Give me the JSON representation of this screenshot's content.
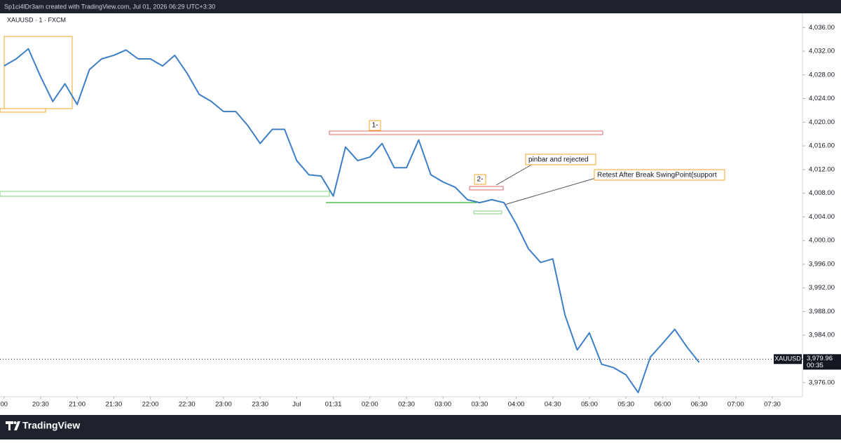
{
  "header": {
    "text": "Sp1ci4lDr3am created with TradingView.com, Jul 01, 2026 06:29 UTC+3:30"
  },
  "chart_data": {
    "type": "line",
    "title": "XAUUSD · 1 · FXCM",
    "x": [
      0,
      10,
      20,
      30,
      40,
      50,
      60,
      70,
      80,
      90,
      100,
      110,
      120,
      130,
      140,
      150,
      160,
      170,
      180,
      190,
      200,
      210,
      220,
      230,
      240,
      250,
      260,
      270,
      280,
      290,
      300,
      310,
      320,
      330,
      340,
      350,
      360,
      370,
      380,
      390,
      400,
      410,
      420,
      430,
      440,
      450,
      460,
      470,
      480,
      490,
      500,
      510,
      520,
      530,
      540,
      550,
      560,
      570
    ],
    "series": [
      {
        "name": "XAUUSD",
        "color": "#3d7fc6",
        "values": [
          4029.5,
          4030.7,
          4032.4,
          4027.7,
          4023.5,
          4026.5,
          4023,
          4028.9,
          4030.7,
          4031.3,
          4032.2,
          4030.7,
          4030.7,
          4029.5,
          4031.3,
          4028.3,
          4024.7,
          4023.5,
          4021.8,
          4021.8,
          4019.4,
          4016.4,
          4018.8,
          4018.8,
          4013.5,
          4011.1,
          4010.9,
          4007.5,
          4015.8,
          4013.5,
          4014.1,
          4016.4,
          4012.3,
          4012.3,
          4017.0,
          4011.1,
          4009.9,
          4009.0,
          4006.9,
          4006.4,
          4006.9,
          4006.4,
          4002.8,
          3998.6,
          3996.3,
          3996.9,
          3987.4,
          3981.5,
          3984.4,
          3979.1,
          3978.5,
          3977.3,
          3974.3,
          3980.3,
          3982.6,
          3985.0,
          3982.0,
          3979.4
        ]
      }
    ],
    "xlim": [
      -3.3,
      654.7
    ],
    "ylim": [
      3973.6,
      4038.4
    ],
    "xticks": [
      {
        "value": 0,
        "label": "00"
      },
      {
        "value": 30,
        "label": "20:30"
      },
      {
        "value": 60,
        "label": "21:00"
      },
      {
        "value": 90,
        "label": "21:30"
      },
      {
        "value": 120,
        "label": "22:00"
      },
      {
        "value": 150,
        "label": "22:30"
      },
      {
        "value": 180,
        "label": "23:00"
      },
      {
        "value": 210,
        "label": "23:30"
      },
      {
        "value": 240,
        "label": "Jul"
      },
      {
        "value": 270,
        "label": "01:31"
      },
      {
        "value": 300,
        "label": "02:00"
      },
      {
        "value": 330,
        "label": "02:30"
      },
      {
        "value": 360,
        "label": "03:00"
      },
      {
        "value": 390,
        "label": "03:30"
      },
      {
        "value": 420,
        "label": "04:00"
      },
      {
        "value": 450,
        "label": "04:30"
      },
      {
        "value": 480,
        "label": "05:00"
      },
      {
        "value": 510,
        "label": "05:30"
      },
      {
        "value": 540,
        "label": "06:00"
      },
      {
        "value": 570,
        "label": "06:30"
      },
      {
        "value": 600,
        "label": "07:00"
      },
      {
        "value": 630,
        "label": "07:30"
      }
    ],
    "yticks": [
      {
        "value": 3976,
        "label": "3,976.00"
      },
      {
        "value": 3980,
        "label": "3,980.00"
      },
      {
        "value": 3984,
        "label": "3,984.00"
      },
      {
        "value": 3988,
        "label": "3,988.00"
      },
      {
        "value": 3992,
        "label": "3,992.00"
      },
      {
        "value": 3996,
        "label": "3,996.00"
      },
      {
        "value": 4000,
        "label": "4,000.00"
      },
      {
        "value": 4004,
        "label": "4,004.00"
      },
      {
        "value": 4008,
        "label": "4,008.00"
      },
      {
        "value": 4012,
        "label": "4,012.00"
      },
      {
        "value": 4016,
        "label": "4,016.00"
      },
      {
        "value": 4020,
        "label": "4,020.00"
      },
      {
        "value": 4024,
        "label": "4,024.00"
      },
      {
        "value": 4028,
        "label": "4,028.00"
      },
      {
        "value": 4032,
        "label": "4,032.00"
      },
      {
        "value": 4036,
        "label": "4,036.00"
      }
    ],
    "last_price": {
      "value": 3979.96,
      "label": "3,979.96",
      "symbol": "XAUUSD",
      "countdown": "00:35"
    },
    "annotations": [
      "1-",
      "2-",
      "pinbar and rejected",
      "Retest After Break SwingPoint(support"
    ]
  },
  "footer": {
    "brand": "TradingView"
  }
}
